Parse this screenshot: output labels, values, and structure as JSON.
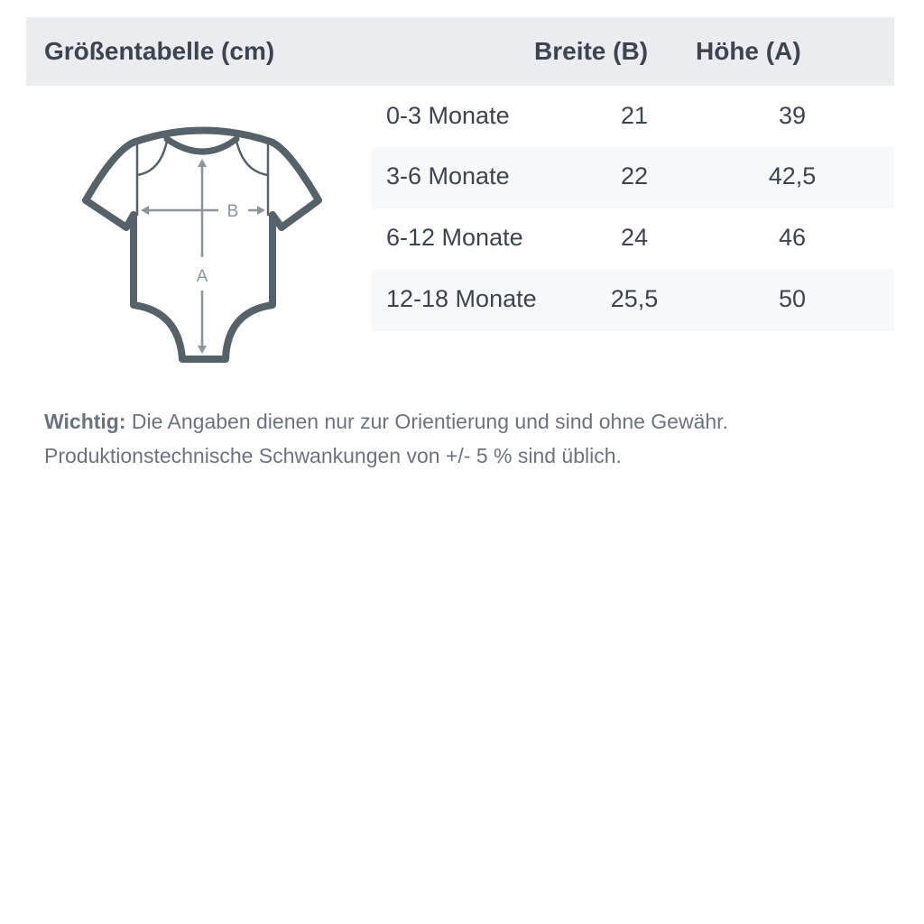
{
  "table": {
    "title": "Größentabelle (cm)",
    "col_width": "Breite (B)",
    "col_height": "Höhe (A)",
    "rows": [
      {
        "size": "0-3 Monate",
        "width": "21",
        "height": "39"
      },
      {
        "size": "3-6 Monate",
        "width": "22",
        "height": "42,5"
      },
      {
        "size": "6-12 Monate",
        "width": "24",
        "height": "46"
      },
      {
        "size": "12-18 Monate",
        "width": "25,5",
        "height": "50"
      }
    ]
  },
  "diagram": {
    "label_b": "B",
    "label_a": "A",
    "outline_color": "#56626a",
    "arrow_color": "#8a949c"
  },
  "note": {
    "label": "Wichtig:",
    "line1": " Die Angaben dienen nur zur Orientierung und sind ohne Gewähr.",
    "line2": "Produktionstechnische Schwankungen von +/- 5 % sind üblich."
  }
}
